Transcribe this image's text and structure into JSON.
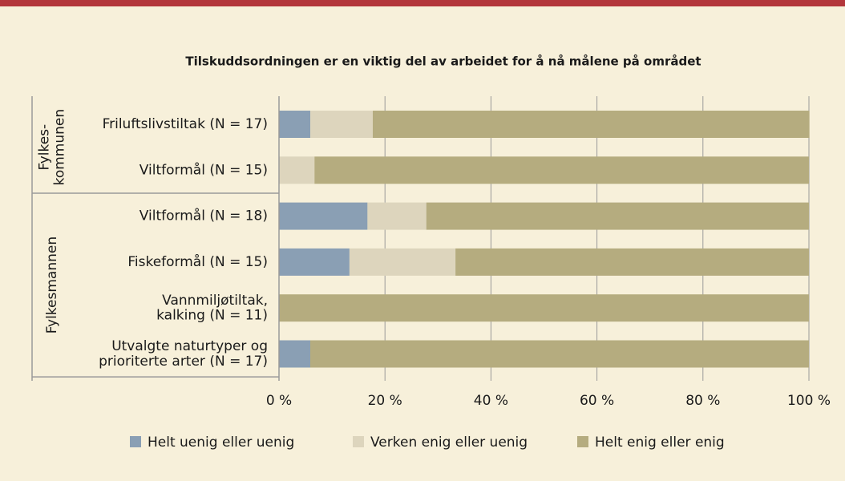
{
  "chart_data": {
    "type": "stacked-barh",
    "title": "Tilskuddsordningen er en viktig del av arbeidet for å nå målene på området",
    "groups": [
      "Fylkes-\nkommunen",
      "Fylkesmannen"
    ],
    "categories": [
      "Friluftslivstiltak (N = 17)",
      "Viltformål (N = 15)",
      "Viltformål (N = 18)",
      "Fiskeformål (N = 15)",
      "Vannmiljøtiltak,\nkalking (N = 11)",
      "Utvalgte naturtyper og\nprioriterte arter (N = 17)"
    ],
    "series": [
      {
        "name": "Helt uenig eller uenig",
        "color": "#8a9fb4",
        "values": [
          5.9,
          0,
          16.7,
          13.3,
          0,
          5.9
        ]
      },
      {
        "name": "Verken enig eller uenig",
        "color": "#ddd5bd",
        "values": [
          11.8,
          6.7,
          11.1,
          20.0,
          0,
          0
        ]
      },
      {
        "name": "Helt enig eller enig",
        "color": "#b5ac7f",
        "values": [
          82.4,
          93.3,
          72.2,
          66.7,
          100,
          94.1
        ]
      }
    ],
    "xlim": [
      0,
      100
    ],
    "xticks": [
      {
        "value": 0,
        "label": "0 %"
      },
      {
        "value": 20,
        "label": "20 %"
      },
      {
        "value": 40,
        "label": "40 %"
      },
      {
        "value": 60,
        "label": "60 %"
      },
      {
        "value": 80,
        "label": "80 %"
      },
      {
        "value": 100,
        "label": "100 %"
      }
    ],
    "grid": true,
    "legend": "bottom"
  }
}
